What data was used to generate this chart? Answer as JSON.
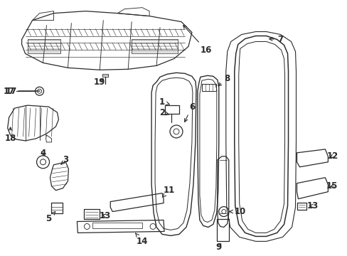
{
  "bg_color": "#ffffff",
  "line_color": "#2a2a2a",
  "figsize": [
    4.89,
    3.6
  ],
  "dpi": 100,
  "lw": 0.9
}
